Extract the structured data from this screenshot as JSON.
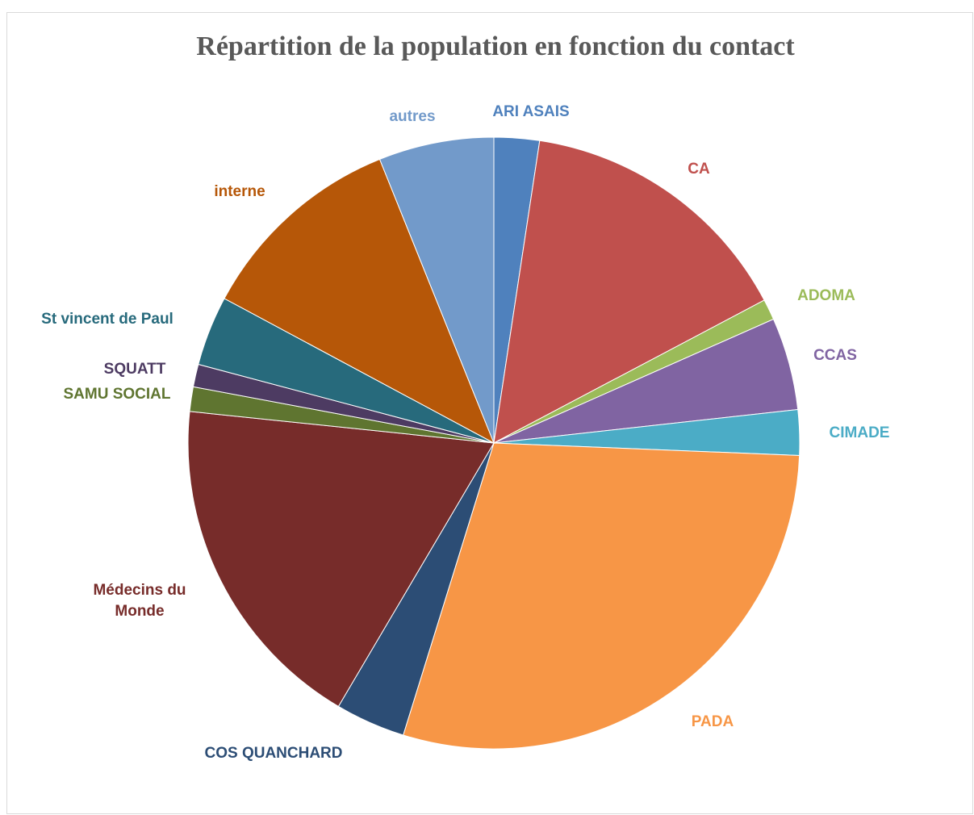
{
  "chart_data": {
    "type": "pie",
    "title": "Répartition de la population en fonction du contact",
    "categories": [
      "ARI ASAIS",
      "CA",
      "ADOMA",
      "CCAS",
      "CIMADE",
      "PADA",
      "COS QUANCHARD",
      "Médecins du Monde",
      "SAMU SOCIAL",
      "SQUATT",
      "St vincent de Paul",
      "interne",
      "autres"
    ],
    "values": [
      2.4,
      14.9,
      1.1,
      4.9,
      2.4,
      29.2,
      3.7,
      18.2,
      1.3,
      1.2,
      3.7,
      11.1,
      6.1
    ],
    "colors": [
      "#4f81bd",
      "#c0504d",
      "#9bbb59",
      "#8064a2",
      "#4bacc6",
      "#f79646",
      "#2c4d75",
      "#772c2a",
      "#5f7530",
      "#4d3b62",
      "#276a7c",
      "#b65708",
      "#729aca"
    ]
  }
}
